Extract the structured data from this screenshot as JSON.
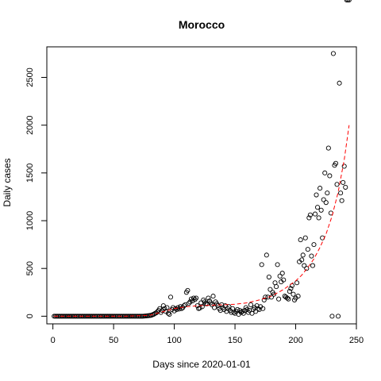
{
  "chart_data": {
    "type": "scatter",
    "title": "Morocco",
    "xlabel": "Days since 2020-01-01",
    "ylabel": "Daily cases",
    "xlim": [
      -5,
      250
    ],
    "ylim": [
      -80,
      2820
    ],
    "xticks": [
      0,
      50,
      100,
      150,
      200,
      250
    ],
    "yticks": [
      0,
      500,
      1000,
      1500,
      2000,
      2500
    ],
    "grid": false,
    "points_x": [
      1,
      2,
      3,
      4,
      5,
      6,
      7,
      8,
      9,
      10,
      11,
      12,
      13,
      14,
      15,
      16,
      17,
      18,
      19,
      20,
      21,
      22,
      23,
      24,
      25,
      26,
      27,
      28,
      29,
      30,
      31,
      32,
      33,
      34,
      35,
      36,
      37,
      38,
      39,
      40,
      41,
      42,
      43,
      44,
      45,
      46,
      47,
      48,
      49,
      50,
      51,
      52,
      53,
      54,
      55,
      56,
      57,
      58,
      59,
      60,
      61,
      62,
      63,
      64,
      65,
      66,
      67,
      68,
      69,
      70,
      71,
      72,
      73,
      74,
      75,
      76,
      77,
      78,
      79,
      80,
      81,
      82,
      83,
      84,
      85,
      86,
      87,
      88,
      89,
      90,
      91,
      92,
      93,
      94,
      95,
      96,
      97,
      98,
      99,
      100,
      101,
      102,
      103,
      104,
      105,
      106,
      107,
      108,
      109,
      110,
      111,
      112,
      113,
      114,
      115,
      116,
      117,
      118,
      119,
      120,
      121,
      122,
      123,
      124,
      125,
      126,
      127,
      128,
      129,
      130,
      131,
      132,
      133,
      134,
      135,
      136,
      137,
      138,
      139,
      140,
      141,
      142,
      143,
      144,
      145,
      146,
      147,
      148,
      149,
      150,
      151,
      152,
      153,
      154,
      155,
      156,
      157,
      158,
      159,
      160,
      161,
      162,
      163,
      164,
      165,
      166,
      167,
      168,
      169,
      170,
      171,
      172,
      173,
      174,
      175,
      176,
      177,
      178,
      179,
      180,
      181,
      182,
      183,
      184,
      185,
      186,
      187,
      188,
      189,
      190,
      191,
      192,
      193,
      194,
      195,
      196,
      197,
      198,
      199,
      200,
      201,
      202,
      203,
      204,
      205,
      206,
      207,
      208,
      209,
      210,
      211,
      212,
      213,
      214,
      215,
      216,
      217,
      218,
      219,
      220,
      221,
      222,
      223,
      224,
      225,
      226,
      227,
      228,
      229,
      230,
      231,
      232,
      233,
      234,
      235,
      236,
      237,
      238,
      239,
      240,
      241,
      242,
      243,
      244
    ],
    "points_y": [
      0,
      0,
      0,
      0,
      0,
      0,
      0,
      0,
      0,
      0,
      0,
      0,
      0,
      0,
      0,
      0,
      0,
      0,
      0,
      0,
      0,
      0,
      0,
      0,
      0,
      0,
      0,
      0,
      0,
      0,
      0,
      0,
      0,
      0,
      0,
      0,
      0,
      0,
      0,
      0,
      0,
      0,
      0,
      0,
      0,
      0,
      0,
      0,
      0,
      0,
      0,
      0,
      0,
      0,
      0,
      0,
      0,
      0,
      0,
      0,
      0,
      0,
      0,
      0,
      0,
      0,
      0,
      0,
      0,
      0,
      0,
      0,
      0,
      0,
      1,
      2,
      3,
      5,
      6,
      8,
      10,
      15,
      20,
      28,
      35,
      45,
      60,
      80,
      40,
      60,
      110,
      80,
      50,
      90,
      30,
      20,
      200,
      70,
      90,
      55,
      80,
      70,
      90,
      75,
      100,
      80,
      90,
      110,
      120,
      250,
      270,
      135,
      150,
      180,
      160,
      190,
      175,
      190,
      110,
      80,
      85,
      140,
      100,
      170,
      150,
      130,
      130,
      190,
      160,
      140,
      120,
      210,
      90,
      150,
      130,
      110,
      80,
      60,
      120,
      90,
      70,
      110,
      50,
      80,
      100,
      60,
      40,
      80,
      40,
      30,
      50,
      70,
      20,
      60,
      40,
      50,
      30,
      60,
      90,
      70,
      40,
      60,
      120,
      30,
      70,
      90,
      50,
      110,
      80,
      70,
      100,
      540,
      80,
      170,
      200,
      640,
      200,
      410,
      280,
      200,
      250,
      230,
      350,
      310,
      540,
      180,
      420,
      360,
      450,
      380,
      210,
      200,
      190,
      180,
      260,
      290,
      320,
      230,
      170,
      190,
      350,
      210,
      570,
      800,
      590,
      640,
      530,
      820,
      500,
      700,
      1030,
      1060,
      630,
      530,
      750,
      1070,
      1270,
      1140,
      1030,
      1340,
      1110,
      820,
      1220,
      1500,
      1190,
      1290,
      1760,
      1470,
      1080,
      0,
      2750,
      1580,
      1600,
      1380,
      0,
      2440,
      1290,
      1210,
      1400,
      1570,
      1350
    ],
    "trend_x": [
      1,
      20,
      40,
      60,
      80,
      100,
      110,
      120,
      130,
      140,
      150,
      160,
      170,
      180,
      190,
      200,
      205,
      210,
      215,
      220,
      225,
      230,
      235,
      240,
      244
    ],
    "trend_y": [
      0,
      0,
      0,
      0,
      10,
      80,
      100,
      110,
      115,
      120,
      125,
      140,
      170,
      210,
      280,
      370,
      430,
      510,
      600,
      720,
      860,
      1050,
      1300,
      1640,
      2000
    ],
    "point_color": "#000000",
    "trend_color": "#ff0000"
  }
}
